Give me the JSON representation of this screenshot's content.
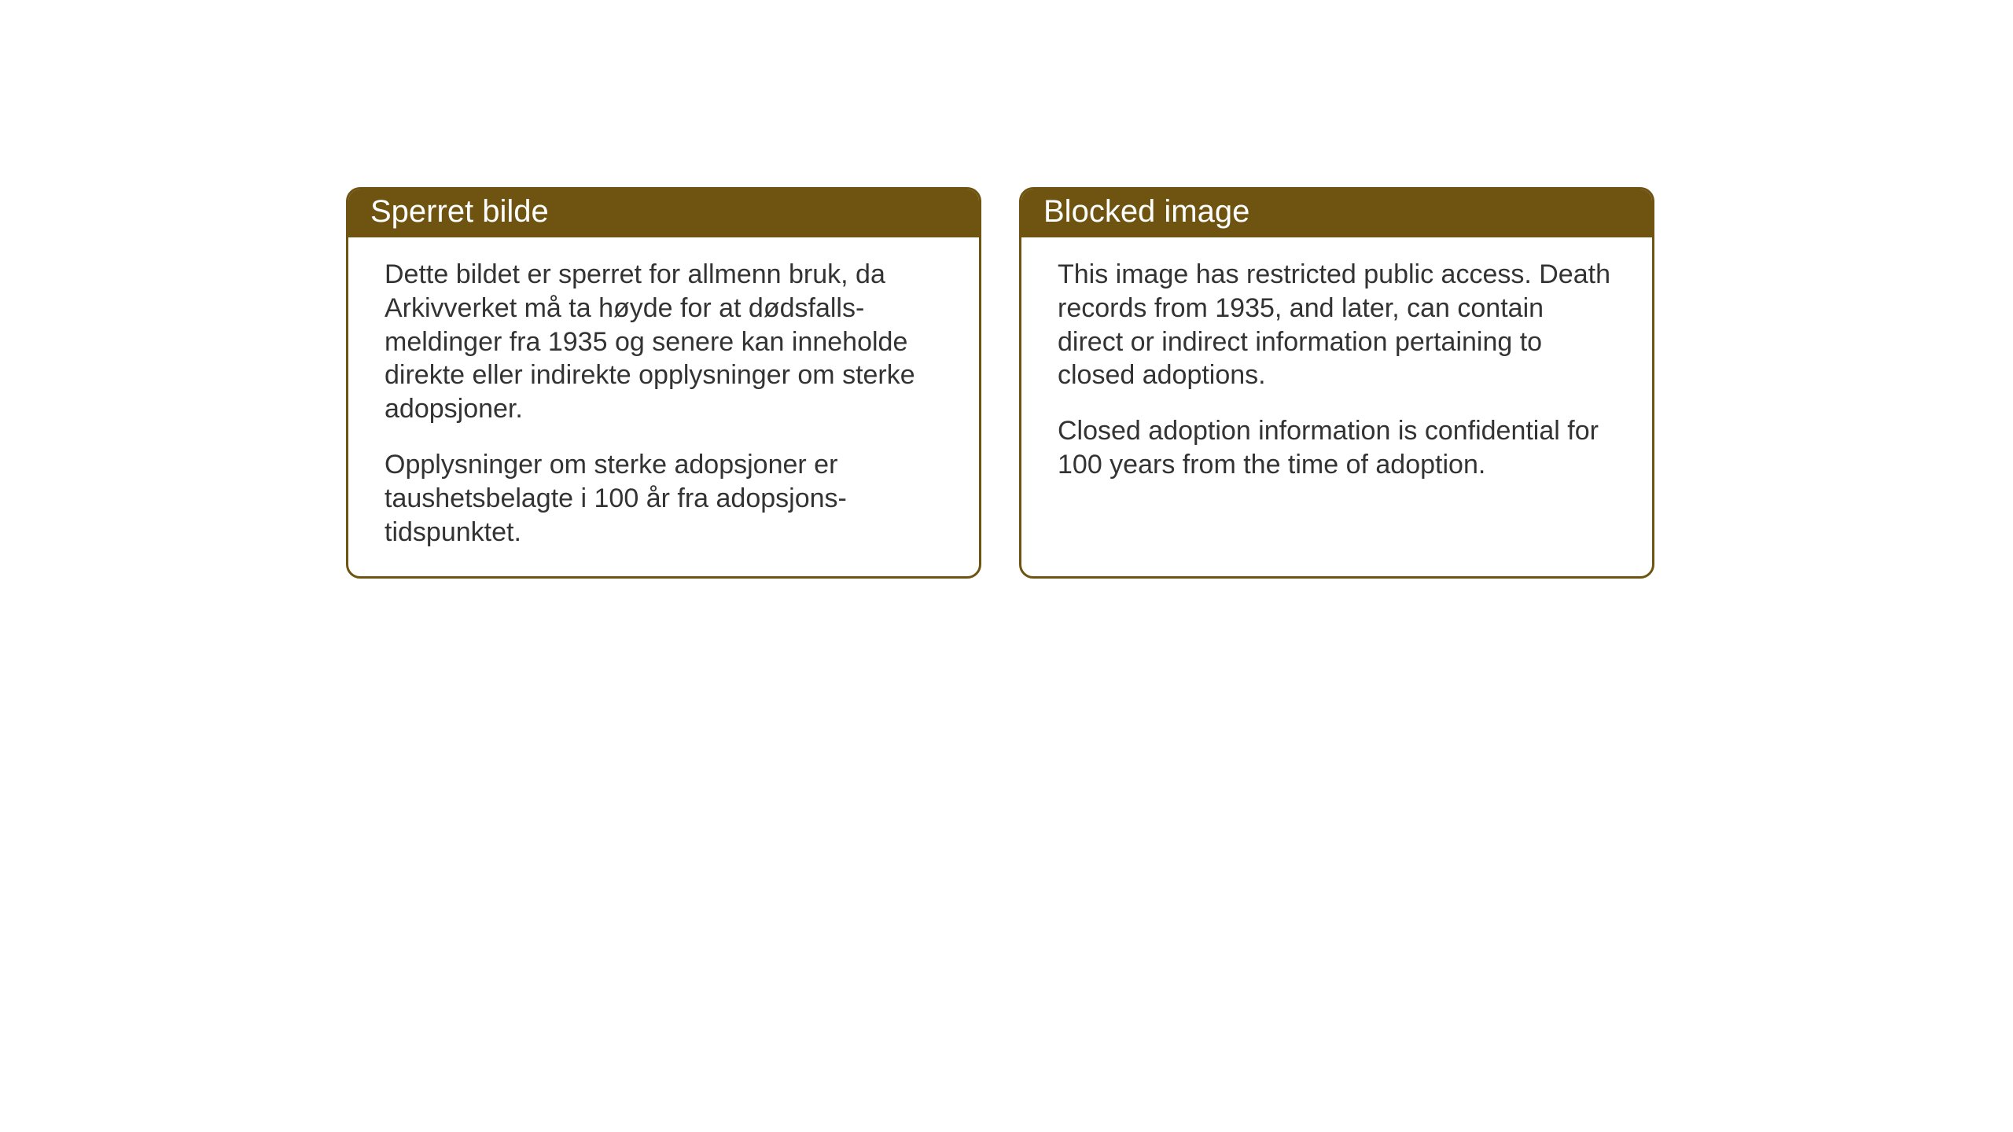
{
  "layout": {
    "background_color": "#ffffff",
    "card_border_color": "#6f5411",
    "card_header_bg": "#6f5411",
    "card_header_text_color": "#ffffff",
    "card_body_text_color": "#333333",
    "card_border_radius": 18,
    "card_border_width": 3,
    "header_fontsize": 40,
    "body_fontsize": 34,
    "body_line_height": 1.26
  },
  "cards": {
    "norwegian": {
      "title": "Sperret bilde",
      "paragraph1": "Dette bildet er sperret for allmenn bruk, da Arkivverket må ta høyde for at dødsfalls-meldinger fra 1935 og senere kan inneholde direkte eller indirekte opplysninger om sterke adopsjoner.",
      "paragraph2": "Opplysninger om sterke adopsjoner er taushetsbelagte i 100 år fra adopsjons-tidspunktet."
    },
    "english": {
      "title": "Blocked image",
      "paragraph1": "This image has restricted public access. Death records from 1935, and later, can contain direct or indirect information pertaining to closed adoptions.",
      "paragraph2": "Closed adoption information is confidential for 100 years from the time of adoption."
    }
  }
}
